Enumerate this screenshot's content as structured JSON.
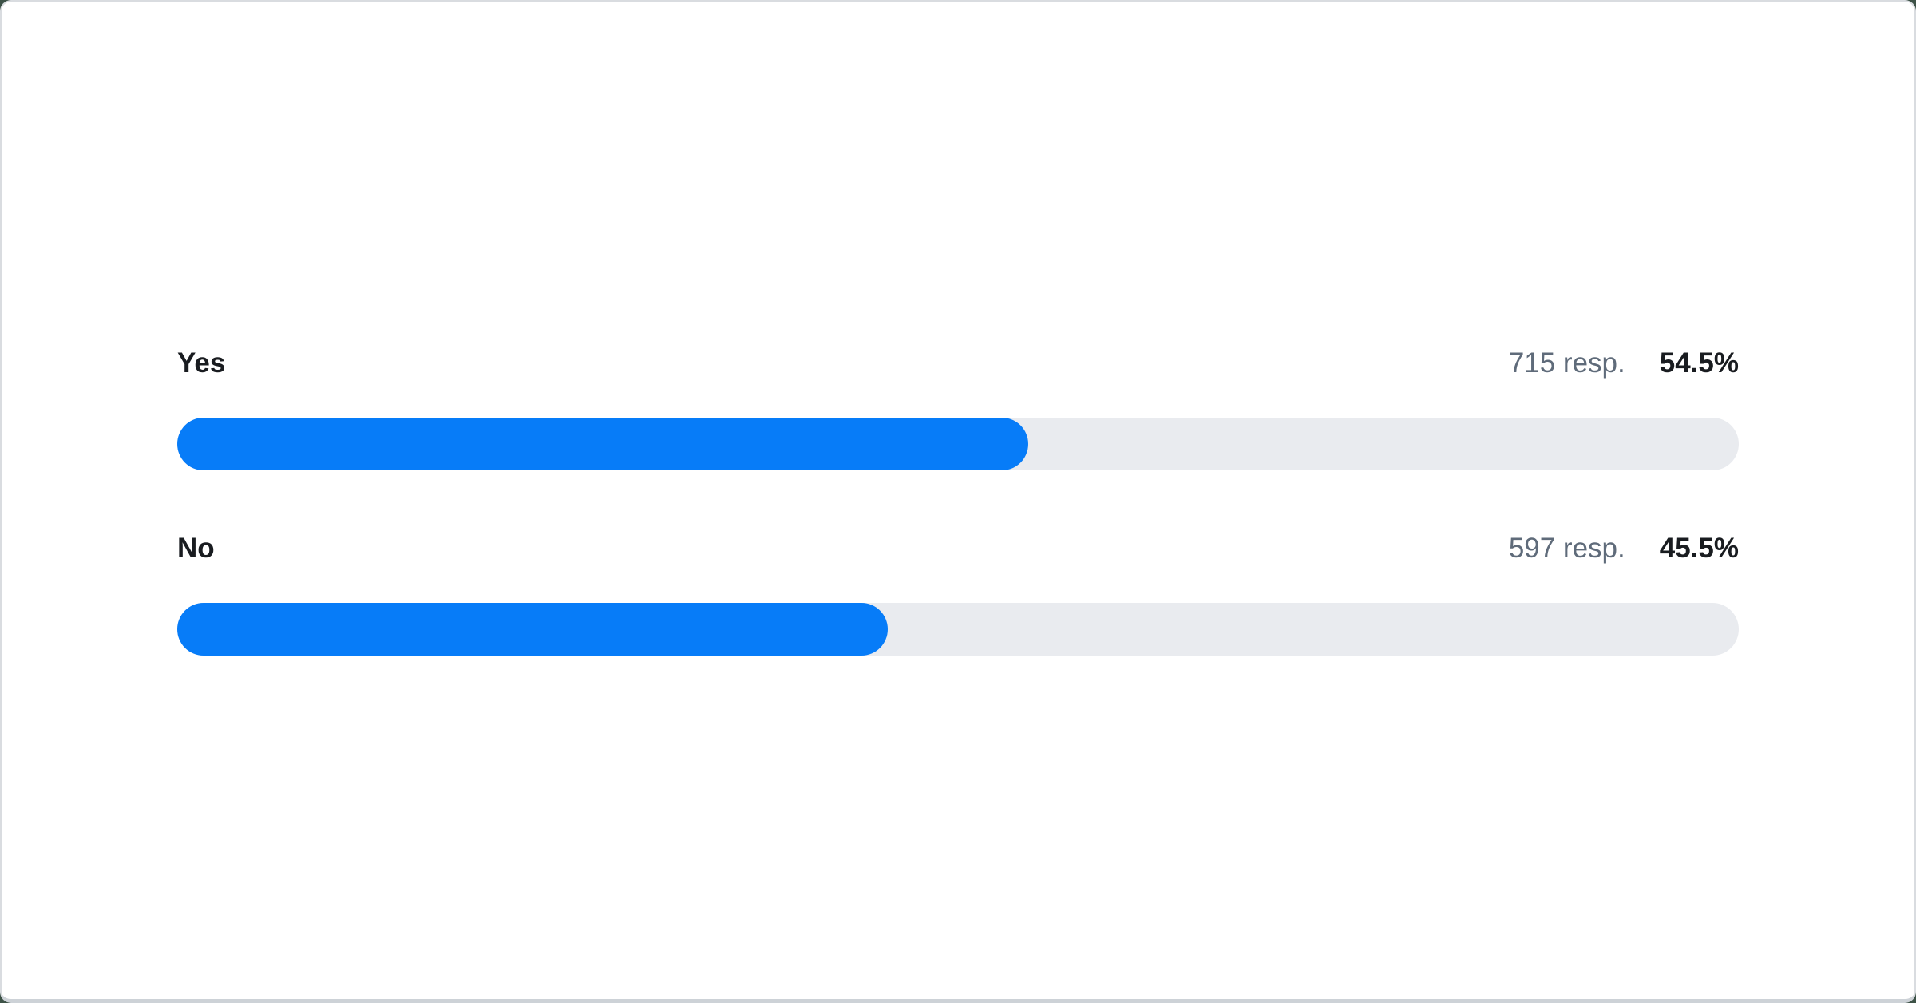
{
  "page": {
    "background_color": "#3d5247"
  },
  "card": {
    "background_color": "#ffffff",
    "border_color": "#d9dce0",
    "border_bottom_color": "#cdd2d7"
  },
  "poll": {
    "unit_suffix": "resp.",
    "colors": {
      "bar_fill": "#077cf8",
      "bar_track": "#e9ebef",
      "label_text": "#191c20",
      "muted_text": "#5f6b7a"
    },
    "options": [
      {
        "label": "Yes",
        "responses": 715,
        "responses_text": "715 resp.",
        "percent": 54.5,
        "percent_text": "54.5%"
      },
      {
        "label": "No",
        "responses": 597,
        "responses_text": "597 resp.",
        "percent": 45.5,
        "percent_text": "45.5%"
      }
    ]
  },
  "chart_data": {
    "type": "bar",
    "orientation": "horizontal",
    "categories": [
      "Yes",
      "No"
    ],
    "values": [
      54.5,
      45.5
    ],
    "series": [
      {
        "name": "percent",
        "values": [
          54.5,
          45.5
        ]
      },
      {
        "name": "responses",
        "values": [
          715,
          597
        ]
      }
    ],
    "value_labels": [
      "54.5%",
      "45.5%"
    ],
    "count_labels": [
      "715 resp.",
      "597 resp."
    ],
    "xlim": [
      0,
      100
    ],
    "title": "",
    "xlabel": "",
    "ylabel": "",
    "grid": false,
    "legend": false
  }
}
